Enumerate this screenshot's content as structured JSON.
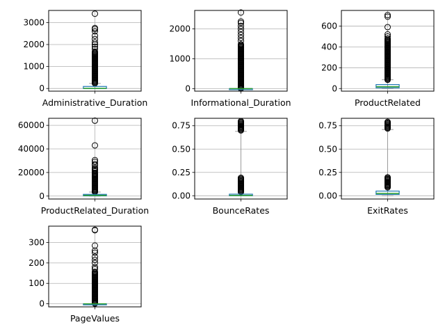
{
  "chart_data": [
    {
      "type": "box",
      "xlabel": "Administrative_Duration",
      "ylim": [
        -120,
        3550
      ],
      "yticks": [
        0,
        1000,
        2000,
        3000
      ],
      "grid": true,
      "box": {
        "q1": 0,
        "median": 7.5,
        "q3": 93,
        "whisker_low": 0,
        "whisker_high": 232
      },
      "outliers": {
        "continuous_range": [
          232,
          1700
        ],
        "sparse": [
          1800,
          1900,
          2000,
          2100,
          2250,
          2400,
          2600,
          2700,
          2750,
          3400
        ]
      }
    },
    {
      "type": "box",
      "xlabel": "Informational_Duration",
      "ylim": [
        -85,
        2620
      ],
      "yticks": [
        0,
        1000,
        2000
      ],
      "grid": true,
      "box": {
        "q1": 0,
        "median": 0,
        "q3": 0,
        "whisker_low": 0,
        "whisker_high": 0
      },
      "outliers": {
        "continuous_range": [
          1,
          1500
        ],
        "sparse": [
          1600,
          1700,
          1800,
          1900,
          2000,
          2100,
          2200,
          2250,
          2550
        ]
      }
    },
    {
      "type": "box",
      "xlabel": "ProductRelated",
      "ylim": [
        -25,
        750
      ],
      "yticks": [
        0,
        200,
        400,
        600
      ],
      "grid": true,
      "box": {
        "q1": 7,
        "median": 18,
        "q3": 38,
        "whisker_low": 0,
        "whisker_high": 84
      },
      "outliers": {
        "continuous_range": [
          84,
          470
        ],
        "sparse": [
          480,
          500,
          520,
          590,
          690,
          705
        ]
      }
    },
    {
      "type": "box",
      "xlabel": "ProductRelated_Duration",
      "ylim": [
        -2500,
        66000
      ],
      "yticks": [
        0,
        20000,
        40000,
        60000
      ],
      "grid": true,
      "box": {
        "q1": 184,
        "median": 599,
        "q3": 1464,
        "whisker_low": 0,
        "whisker_high": 3385
      },
      "outliers": {
        "continuous_range": [
          3385,
          20000
        ],
        "sparse": [
          21000,
          22000,
          23000,
          24000,
          26000,
          27000,
          29000,
          30500,
          43000,
          64000
        ]
      }
    },
    {
      "type": "box",
      "xlabel": "BounceRates",
      "ylim": [
        -0.035,
        0.83
      ],
      "yticks": [
        0,
        0.25,
        0.5,
        0.75
      ],
      "yticklabels": [
        "0.00",
        "0.25",
        "0.50",
        "0.75"
      ],
      "grid": true,
      "box": {
        "q1": 0,
        "median": 0.003,
        "q3": 0.017,
        "whisker_low": 0,
        "whisker_high": 0.69
      },
      "outliers": {
        "continuous_range": [
          0.04,
          0.2
        ],
        "upper_cluster": [
          0.7,
          0.8
        ]
      }
    },
    {
      "type": "box",
      "xlabel": "ExitRates",
      "ylim": [
        -0.035,
        0.83
      ],
      "yticks": [
        0,
        0.25,
        0.5,
        0.75
      ],
      "yticklabels": [
        "0.00",
        "0.25",
        "0.50",
        "0.75"
      ],
      "grid": true,
      "box": {
        "q1": 0.014,
        "median": 0.025,
        "q3": 0.05,
        "whisker_low": 0,
        "whisker_high": 0.71
      },
      "outliers": {
        "continuous_range": [
          0.09,
          0.2
        ],
        "upper_cluster": [
          0.72,
          0.8
        ]
      }
    },
    {
      "type": "box",
      "xlabel": "PageValues",
      "ylim": [
        -15,
        380
      ],
      "yticks": [
        0,
        100,
        200,
        300
      ],
      "grid": true,
      "box": {
        "q1": 0,
        "median": 0,
        "q3": 0,
        "whisker_low": 0,
        "whisker_high": 0
      },
      "outliers": {
        "continuous_range": [
          1,
          160
        ],
        "sparse": [
          170,
          180,
          200,
          215,
          230,
          250,
          260,
          285,
          360,
          362
        ]
      }
    }
  ],
  "colors": {
    "box_edge": "#1f77b4",
    "median": "#2ca02c",
    "whisker": "#9a9a9a",
    "grid": "#b0b0b0",
    "axes": "#000000",
    "outlier": "#000000"
  }
}
